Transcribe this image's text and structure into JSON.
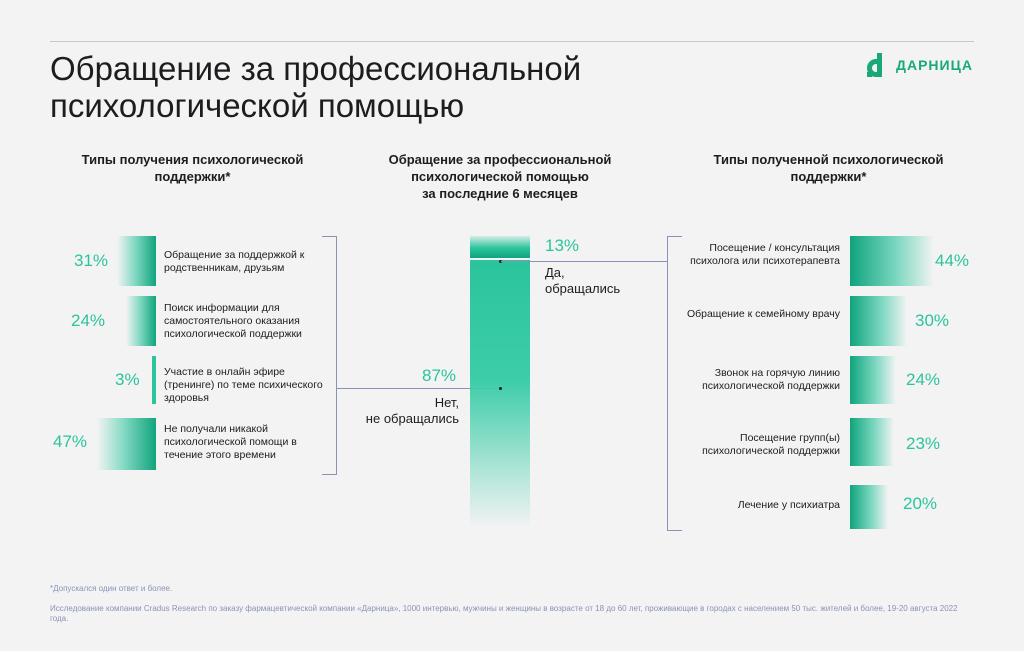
{
  "title": "Обращение за профессиональной психологической помощью",
  "logo": {
    "text": "ДАРНИЦА"
  },
  "colors": {
    "accent": "#2bc49c",
    "accent_dark": "#0fa47d",
    "line": "#8b93b5"
  },
  "chart_data": [
    {
      "type": "bar",
      "title": "Типы получения психологической поддержки*",
      "categories": [
        "Обращение за поддержкой к родственникам, друзьям",
        "Поиск информации для самостоятельного оказания психологической поддержки",
        "Участие в онлайн эфире (тренинге) по теме психического здоровья",
        "Не получали никакой психологической помощи в течение этого времени"
      ],
      "values": [
        31,
        24,
        3,
        47
      ],
      "value_labels": [
        "31%",
        "24%",
        "3%",
        "47%"
      ],
      "unit": "%"
    },
    {
      "type": "bar",
      "title": "Обращение за профессиональной психологической помощью за последние 6 месяцев",
      "categories": [
        "Да, обращались",
        "Нет, не обращались"
      ],
      "values": [
        13,
        87
      ],
      "value_labels": [
        "13%",
        "87%"
      ],
      "unit": "%"
    },
    {
      "type": "bar",
      "title": "Типы полученной психологической поддержки*",
      "categories": [
        "Посещение / консультация психолога или психотерапевта",
        "Обращение к семейному врачу",
        "Звонок на горячую линию психологической поддержки",
        "Посещение групп(ы) психологической поддержки",
        "Лечение у психиатра"
      ],
      "values": [
        44,
        30,
        24,
        23,
        20
      ],
      "value_labels": [
        "44%",
        "30%",
        "24%",
        "23%",
        "20%"
      ],
      "unit": "%"
    }
  ],
  "labels": {
    "left_head": "Типы получения психологической поддержки*",
    "mid_head_1": "Обращение за профессиональной",
    "mid_head_2": "психологической помощью",
    "mid_head_3": "за последние 6 месяцев",
    "right_head": "Типы полученной психологической поддержки*",
    "yes_1": "Да,",
    "yes_2": "обращались",
    "no_1": "Нет,",
    "no_2": "не обращались",
    "l0": "Обращение за поддержкой к родственникам, друзьям",
    "l1": "Поиск информации для самостоятельного оказания психологической поддержки",
    "l2": "Участие в онлайн эфире (тренинге) по теме психического здоровья",
    "l3": "Не получали никакой психологической помощи в течение этого времени",
    "r0": "Посещение / консультация психолога или психотерапевта",
    "r1": "Обращение к семейному врачу",
    "r2": "Звонок на горячую линию психологической поддержки",
    "r3": "Посещение групп(ы) психологической поддержки",
    "r4": "Лечение у психиатра"
  },
  "footnotes": {
    "note": "*Допускался один ответ и более.",
    "source": "Исследование компании Cradus Research по заказу фармацевтической компании «Дарница», 1000 интервью, мужчины и женщины в возрасте от 18 до 60 лет, проживающие в городах с населением 50 тыс. жителей и более, 19-20 августа 2022 года."
  }
}
